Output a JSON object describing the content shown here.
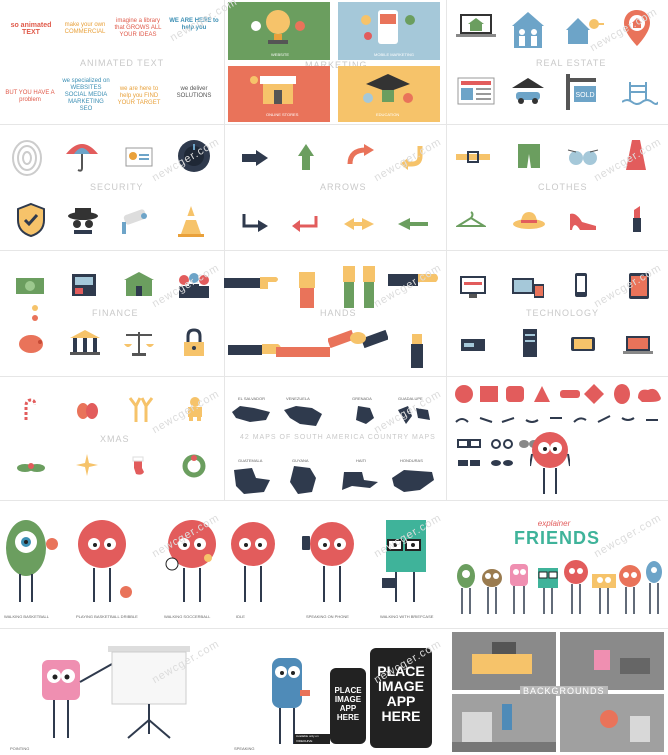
{
  "watermark": "newcger.com",
  "sections": {
    "animated_text": "ANIMATED TEXT",
    "marketing": "MARKETING",
    "real_estate": "REAL ESTATE",
    "security": "SECURITY",
    "arrows": "ARROWS",
    "clothes": "CLOTHES",
    "finance": "FINANCE",
    "hands": "HANDS",
    "technology": "TECHNOLOGY",
    "xmas": "XMAS",
    "latin_america": "42 MAPS OF SOUTH AMERICA COUNTRY MAPS",
    "backgrounds": "BACKGROUNDS"
  },
  "text_samples": {
    "t1": "so animated TEXT",
    "t2": "make your own COMMERCIAL",
    "t3": "imagine a library that GROWS ALL YOUR IDEAS",
    "t4": "WE ARE HERE to help you",
    "t5": "BUT YOU HAVE A problem",
    "t6": "we specialized on WEBSITES SOCIAL MEDIA MARKETING SEO",
    "t7": "we are here to help you FIND YOUR TARGET",
    "t8": "we deliver SOLUTIONS"
  },
  "marketing_labels": [
    "WEBSITE",
    "MOBILE MARKETING",
    "ONLINE STORES",
    "EDUCATION"
  ],
  "maps": [
    "EL SALVADOR",
    "VENEZUELA",
    "GRENADA",
    "GUADALUPE",
    "GUATEMALA",
    "GUYANA",
    "HAITI",
    "HONDURAS"
  ],
  "friends": {
    "title_small": "explainer",
    "title_big": "FRIENDS"
  },
  "char_labels": [
    "WALKING BASKETBALL",
    "PLAYING BASKETBALL DRIBBLE",
    "WALKING SOCCERBALL",
    "IDLE",
    "SPEAKING ON PHONE",
    "WALKING WITH BRIEFCASE",
    "POINTING",
    "SPEAKING"
  ],
  "phone": {
    "line1": "PLACE",
    "line2": "IMAGE",
    "line3": "APP",
    "line4": "HERE",
    "store": "Available only on VIDEOHIVE"
  },
  "colors": {
    "green": "#6b9e5f",
    "blue": "#a5c8d9",
    "coral": "#e9735a",
    "yellow": "#f6c36a",
    "red": "#e25c5c"
  }
}
